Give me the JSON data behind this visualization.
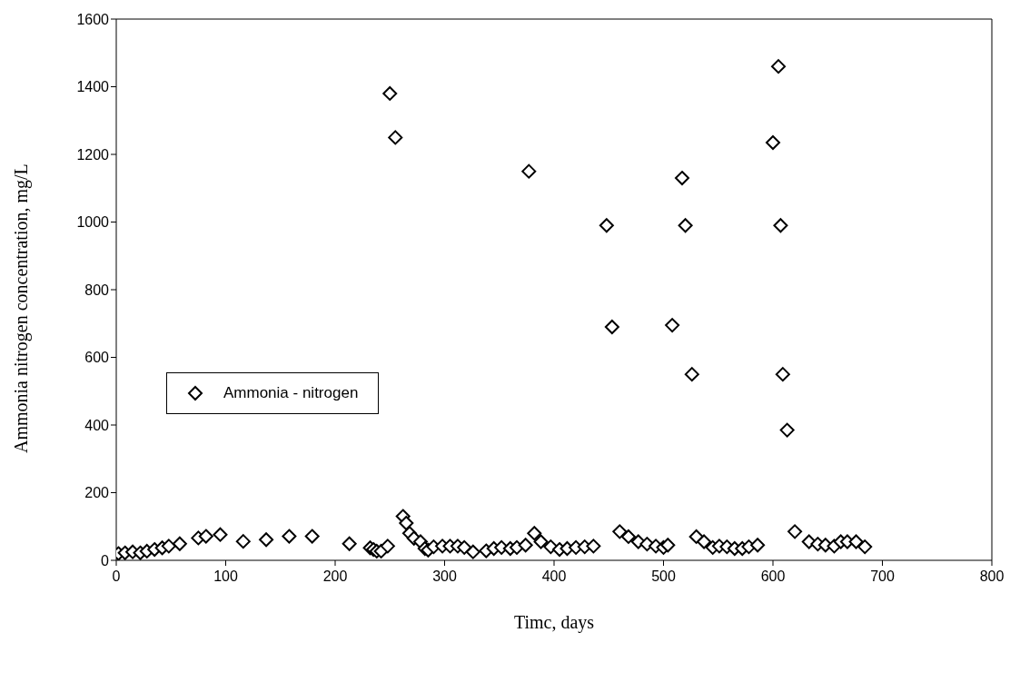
{
  "chart_data": {
    "type": "scatter",
    "xlabel": "Timc, days",
    "ylabel": "Ammonia nitrogen concentration, mg/L",
    "xlim": [
      0,
      800
    ],
    "xticks": [
      0,
      100,
      200,
      300,
      400,
      500,
      600,
      700,
      800
    ],
    "ylim": [
      0,
      1600
    ],
    "yticks": [
      0,
      200,
      400,
      600,
      800,
      1000,
      1200,
      1400,
      1600
    ],
    "grid": false,
    "legend": "center left",
    "marker": "diamond",
    "series": [
      {
        "name": "Ammonia - nitrogen",
        "color": "#000000",
        "x": [
          2,
          8,
          15,
          22,
          28,
          35,
          42,
          48,
          58,
          75,
          82,
          95,
          116,
          137,
          158,
          179,
          213,
          232,
          235,
          238,
          242,
          248,
          250,
          255,
          262,
          265,
          268,
          272,
          278,
          282,
          285,
          290,
          298,
          305,
          312,
          318,
          326,
          338,
          345,
          352,
          360,
          366,
          374,
          377,
          382,
          388,
          397,
          405,
          412,
          420,
          428,
          436,
          448,
          453,
          460,
          468,
          477,
          485,
          493,
          500,
          504,
          508,
          517,
          520,
          526,
          530,
          537,
          545,
          551,
          558,
          565,
          572,
          578,
          586,
          600,
          605,
          607,
          609,
          613,
          620,
          633,
          641,
          648,
          656,
          662,
          668,
          676,
          684
        ],
        "values": [
          20,
          22,
          25,
          22,
          27,
          32,
          37,
          42,
          49,
          66,
          71,
          76,
          56,
          61,
          71,
          71,
          49,
          37,
          32,
          27,
          27,
          42,
          1380,
          1250,
          130,
          110,
          80,
          65,
          55,
          35,
          30,
          40,
          42,
          42,
          42,
          38,
          25,
          28,
          35,
          38,
          35,
          38,
          45,
          1150,
          80,
          55,
          40,
          32,
          35,
          38,
          40,
          42,
          990,
          690,
          85,
          70,
          55,
          48,
          42,
          38,
          45,
          695,
          1130,
          990,
          550,
          70,
          55,
          38,
          42,
          40,
          35,
          35,
          40,
          45,
          1235,
          1460,
          990,
          550,
          385,
          85,
          55,
          48,
          45,
          42,
          55,
          55,
          55,
          40
        ]
      }
    ]
  }
}
